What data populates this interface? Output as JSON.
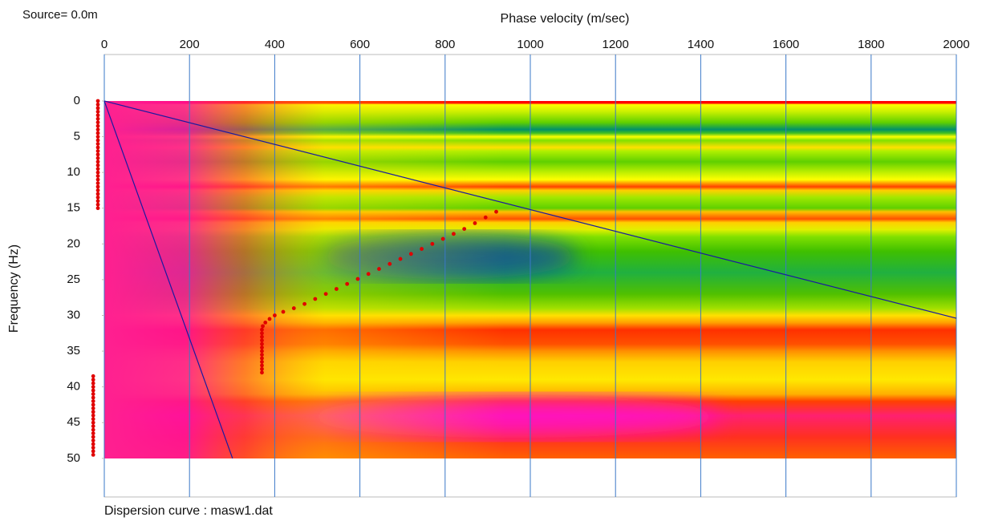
{
  "chart_data": {
    "type": "scatter",
    "title": "Source=  0.0m",
    "xlabel": "Phase velocity (m/sec)",
    "ylabel": "Frequency (Hz)",
    "caption": "Dispersion curve : masw1.dat",
    "xlim": [
      0,
      2000
    ],
    "ylim": [
      -6.5,
      55.4
    ],
    "y_inverted": true,
    "xticks": [
      0,
      200,
      400,
      600,
      800,
      1000,
      1200,
      1400,
      1600,
      1800,
      2000
    ],
    "yticks": [
      0,
      5,
      10,
      15,
      20,
      25,
      30,
      35,
      40,
      45,
      50
    ],
    "grid": true,
    "series": [
      {
        "color": "#e00000",
        "x": [
          370,
          370,
          370,
          370,
          370,
          370,
          370,
          370,
          370,
          370,
          370,
          370,
          370,
          372,
          378,
          388,
          400,
          420,
          445,
          470,
          495,
          520,
          545,
          570,
          595,
          620,
          645,
          670,
          695,
          720,
          745,
          770,
          795,
          820,
          845,
          870,
          895,
          920
        ],
        "values": [
          38,
          37.5,
          37,
          36.5,
          36,
          35.5,
          35,
          34.5,
          34,
          33.5,
          33,
          32.5,
          32,
          31.5,
          31,
          30.5,
          30,
          29.5,
          29,
          28.4,
          27.7,
          27,
          26.3,
          25.6,
          24.9,
          24.2,
          23.5,
          22.8,
          22.1,
          21.4,
          20.7,
          20,
          19.3,
          18.6,
          17.9,
          17.1,
          16.3,
          15.5
        ]
      },
      {
        "color": "#e00000",
        "x": [
          -15,
          -15,
          -15,
          -15,
          -15,
          -15,
          -15,
          -15,
          -15,
          -15,
          -15,
          -15,
          -15,
          -15,
          -15,
          -15,
          -15,
          -15,
          -15,
          -15,
          -15,
          -15,
          -15,
          -15,
          -15,
          -15,
          -15,
          -15,
          -15,
          -15,
          -15
        ],
        "values": [
          0,
          0.5,
          1,
          1.5,
          2,
          2.5,
          3,
          3.5,
          4,
          4.5,
          5,
          5.5,
          6,
          6.5,
          7,
          7.5,
          8,
          8.5,
          9,
          9.5,
          10,
          10.5,
          11,
          11.5,
          12,
          12.5,
          13,
          13.5,
          14,
          14.5,
          15
        ]
      },
      {
        "color": "#e00000",
        "x": [
          -26,
          -26,
          -26,
          -26,
          -26,
          -26,
          -26,
          -26,
          -26,
          -26,
          -26,
          -26,
          -26,
          -26,
          -26,
          -26,
          -26,
          -26,
          -26,
          -26,
          -26,
          -26,
          -26
        ],
        "values": [
          38.5,
          39,
          39.5,
          40,
          40.5,
          41,
          41.5,
          42,
          42.5,
          43,
          43.5,
          44,
          44.5,
          45,
          45.5,
          46,
          46.5,
          47,
          47.5,
          48,
          48.5,
          49,
          49.5
        ]
      }
    ],
    "lines": [
      {
        "color": "#1a1aa0",
        "x": [
          0,
          2000
        ],
        "values": [
          0,
          30.4
        ]
      },
      {
        "color": "#1a1aa0",
        "x": [
          0,
          301
        ],
        "values": [
          0,
          50
        ]
      }
    ]
  }
}
